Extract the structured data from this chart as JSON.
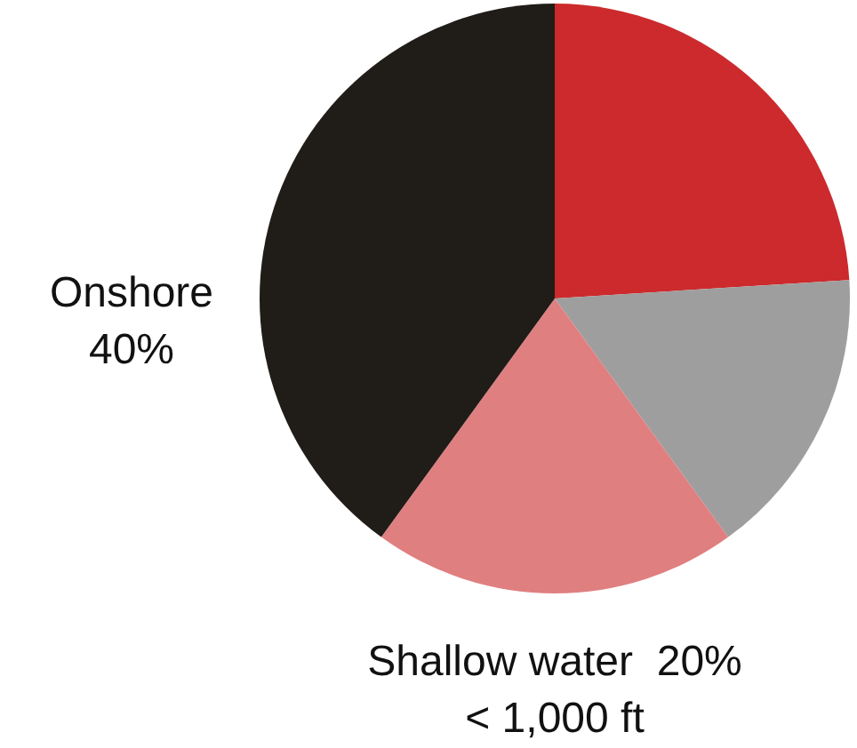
{
  "chart_data": {
    "type": "pie",
    "categories": [
      null,
      null,
      "Shallow water",
      "Onshore"
    ],
    "values": [
      24,
      16,
      20,
      40
    ],
    "colors": [
      "#cc2a2c",
      "#9e9e9e",
      "#e07f80",
      "#201c18"
    ],
    "value_labels": [
      null,
      null,
      "20%",
      "40%"
    ],
    "annotations": [
      "< 1,000 ft"
    ]
  }
}
